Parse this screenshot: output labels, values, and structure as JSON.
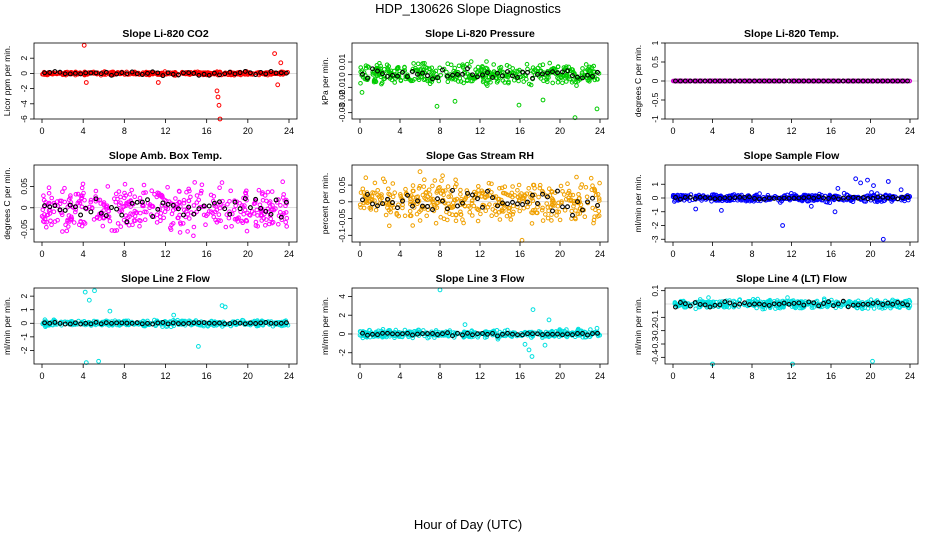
{
  "page": {
    "title": "HDP_130626  Slope Diagnostics",
    "xlabel": "Hour of Day (UTC)"
  },
  "chart_data": [
    {
      "type": "scatter",
      "title": "Slope Li-820 CO2",
      "ylabel": "Licor ppm per min.",
      "color": "#ff0000",
      "xlim": [
        0,
        24
      ],
      "ylim": [
        -6,
        4
      ],
      "xticks": [
        0,
        4,
        8,
        12,
        16,
        20,
        24
      ],
      "yticks": [
        -6,
        -4,
        -2,
        0,
        2
      ],
      "band": 0.3,
      "outliers": [
        [
          4.1,
          3.7
        ],
        [
          17.0,
          -2.3
        ],
        [
          17.1,
          -3.1
        ],
        [
          17.2,
          -4.2
        ],
        [
          17.3,
          -6.0
        ],
        [
          22.6,
          2.6
        ],
        [
          23.2,
          1.4
        ],
        [
          22.9,
          -1.5
        ],
        [
          11.3,
          -1.2
        ],
        [
          4.3,
          -1.2
        ]
      ],
      "black_band": 0.4
    },
    {
      "type": "scatter",
      "title": "Slope Li-820 Pressure",
      "ylabel": "kPa per min.",
      "color": "#00cc00",
      "xlim": [
        0,
        24
      ],
      "ylim": [
        -0.035,
        0.025
      ],
      "xticks": [
        0,
        4,
        8,
        12,
        16,
        20,
        24
      ],
      "yticks": [
        -0.03,
        -0.02,
        -0.01,
        0.0,
        0.01
      ],
      "band": 0.012,
      "outliers": [
        [
          7.7,
          -0.025
        ],
        [
          9.5,
          -0.021
        ],
        [
          15.9,
          -0.024
        ],
        [
          23.7,
          -0.027
        ],
        [
          0.2,
          -0.014
        ],
        [
          21.5,
          -0.034
        ],
        [
          18.3,
          -0.02
        ]
      ],
      "black_band": 0.007
    },
    {
      "type": "scatter",
      "title": "Slope Li-820 Temp.",
      "ylabel": "degrees C per min.",
      "color": "#cc00cc",
      "xlim": [
        0,
        24
      ],
      "ylim": [
        -1.0,
        1.0
      ],
      "xticks": [
        0,
        4,
        8,
        12,
        16,
        20,
        24
      ],
      "yticks": [
        -1.0,
        -0.5,
        0.0,
        0.5,
        1.0
      ],
      "band": 0.0,
      "outliers": [],
      "black_band": 0.0
    },
    {
      "type": "scatter",
      "title": "Slope Amb. Box Temp.",
      "ylabel": "degrees C per min.",
      "color": "#ff00ff",
      "xlim": [
        0,
        24
      ],
      "ylim": [
        -0.08,
        0.1
      ],
      "xticks": [
        0,
        4,
        8,
        12,
        16,
        20,
        24
      ],
      "yticks": [
        -0.05,
        0.0,
        0.05
      ],
      "band": 0.075,
      "outliers": [],
      "black_band": 0.04
    },
    {
      "type": "scatter",
      "title": "Slope Gas Stream RH",
      "ylabel": "percent per min.",
      "color": "#f0a000",
      "xlim": [
        0,
        24
      ],
      "ylim": [
        -0.12,
        0.11
      ],
      "xticks": [
        0,
        4,
        8,
        12,
        16,
        20,
        24
      ],
      "yticks": [
        -0.1,
        -0.05,
        0.0,
        0.05
      ],
      "band": 0.09,
      "outliers": [
        [
          16.2,
          -0.115
        ],
        [
          6.0,
          0.09
        ]
      ],
      "black_band": 0.05
    },
    {
      "type": "scatter",
      "title": "Slope Sample Flow",
      "ylabel": "ml/min per min.",
      "color": "#0000ff",
      "xlim": [
        0,
        24
      ],
      "ylim": [
        -3.2,
        2.4
      ],
      "xticks": [
        0,
        4,
        8,
        12,
        16,
        20,
        24
      ],
      "yticks": [
        -3,
        -2,
        -1,
        0,
        1
      ],
      "band": 0.4,
      "outliers": [
        [
          18.5,
          1.4
        ],
        [
          19.0,
          1.1
        ],
        [
          19.7,
          1.3
        ],
        [
          20.3,
          0.9
        ],
        [
          21.8,
          1.2
        ],
        [
          16.7,
          0.7
        ],
        [
          4.9,
          -0.9
        ],
        [
          21.3,
          -3.0
        ],
        [
          11.1,
          -2.0
        ],
        [
          16.4,
          -1.0
        ],
        [
          2.3,
          -0.8
        ],
        [
          20.1,
          0.4
        ],
        [
          23.1,
          0.6
        ],
        [
          14.0,
          -0.6
        ]
      ],
      "black_band": 0.15
    },
    {
      "type": "scatter",
      "title": "Slope Line 2 Flow",
      "ylabel": "ml/min per min.",
      "color": "#00e0e0",
      "xlim": [
        0,
        24
      ],
      "ylim": [
        -3.0,
        2.6
      ],
      "xticks": [
        0,
        4,
        8,
        12,
        16,
        20,
        24
      ],
      "yticks": [
        -2,
        -1,
        0,
        1,
        2
      ],
      "band": 0.3,
      "outliers": [
        [
          4.2,
          2.3
        ],
        [
          5.1,
          2.4
        ],
        [
          4.6,
          1.7
        ],
        [
          4.3,
          -2.9
        ],
        [
          5.5,
          -2.8
        ],
        [
          17.5,
          1.3
        ],
        [
          17.8,
          1.2
        ],
        [
          15.2,
          -1.7
        ],
        [
          6.6,
          0.9
        ],
        [
          12.8,
          0.6
        ]
      ],
      "black_band": 0.1
    },
    {
      "type": "scatter",
      "title": "Slope Line 3 Flow",
      "ylabel": "ml/min per min.",
      "color": "#00e0e0",
      "xlim": [
        0,
        24
      ],
      "ylim": [
        -3.2,
        4.9
      ],
      "xticks": [
        0,
        4,
        8,
        12,
        16,
        20,
        24
      ],
      "yticks": [
        -2,
        0,
        2,
        4
      ],
      "band": 0.6,
      "outliers": [
        [
          8.0,
          4.7
        ],
        [
          17.3,
          2.6
        ],
        [
          16.9,
          -1.7
        ],
        [
          17.2,
          -2.4
        ],
        [
          16.5,
          -1.1
        ],
        [
          18.5,
          -1.2
        ],
        [
          18.9,
          1.5
        ],
        [
          10.5,
          1.0
        ],
        [
          23.7,
          0.6
        ]
      ],
      "black_band": 0.25
    },
    {
      "type": "scatter",
      "title": "Slope Line 4 (LT) Flow",
      "ylabel": "ml/min per min.",
      "color": "#00e0e0",
      "xlim": [
        0,
        24
      ],
      "ylim": [
        -0.45,
        0.12
      ],
      "xticks": [
        0,
        4,
        8,
        12,
        16,
        20,
        24
      ],
      "yticks": [
        -0.4,
        -0.3,
        -0.2,
        -0.1,
        0.1
      ],
      "band": 0.05,
      "outliers": [
        [
          4.0,
          -0.45
        ],
        [
          12.1,
          -0.45
        ],
        [
          20.2,
          -0.43
        ]
      ],
      "black_band": 0.03
    }
  ]
}
